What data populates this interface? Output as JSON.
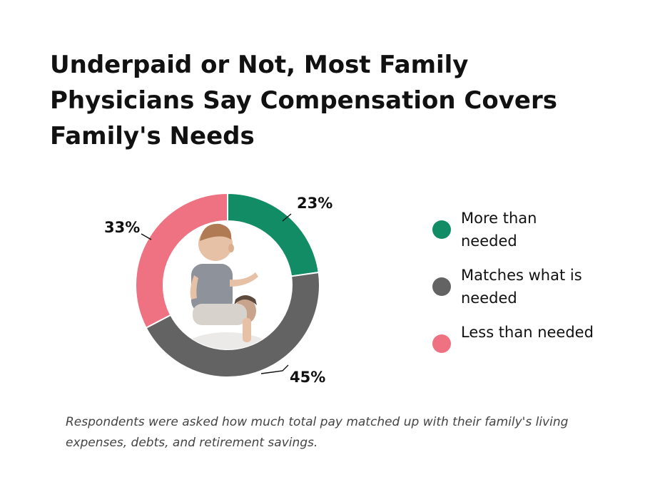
{
  "header": {
    "title": "Underpaid or Not, Most Family Physicians Say Compensation Covers Family's Needs"
  },
  "chart_data": {
    "type": "pie",
    "variant": "donut",
    "categories": [
      "More than needed",
      "Matches what is needed",
      "Less than needed"
    ],
    "values": [
      23,
      45,
      33
    ],
    "value_labels": [
      "23%",
      "45%",
      "33%"
    ],
    "colors": [
      "#128c64",
      "#636363",
      "#ef7282"
    ],
    "legend_placement": "right",
    "center_image": "photo of a baby sitting on an adult's shoulders"
  },
  "legend": {
    "items": [
      {
        "label": "More than needed",
        "color": "#128c64"
      },
      {
        "label": "Matches what is needed",
        "color": "#636363"
      },
      {
        "label": "Less than needed",
        "color": "#ef7282"
      }
    ]
  },
  "footnote": "Respondents were asked how much total pay matched up with their family's living expenses, debts, and retirement savings."
}
